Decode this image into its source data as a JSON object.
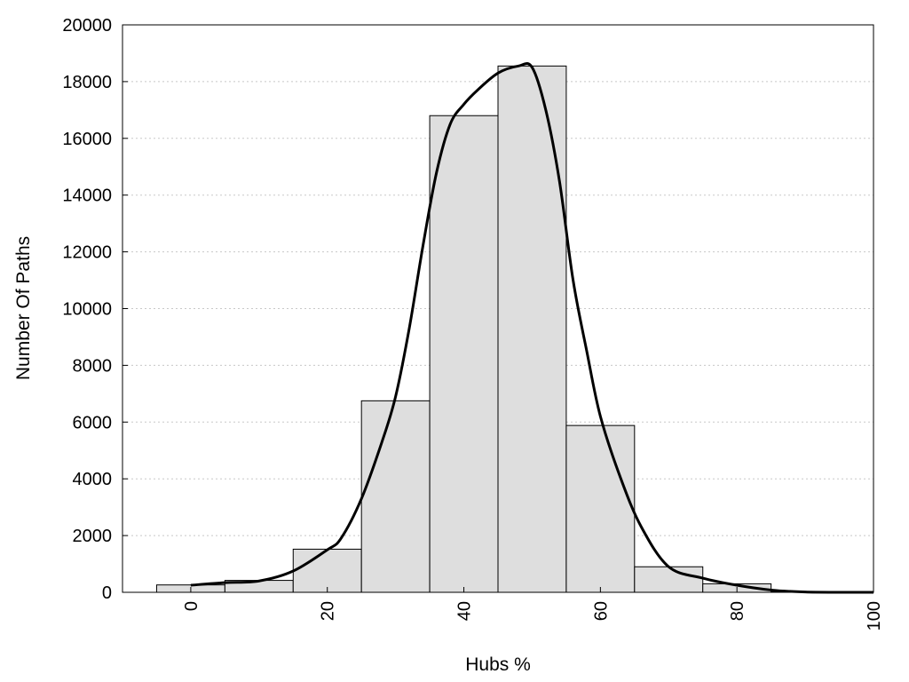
{
  "chart_data": {
    "type": "bar",
    "subtype": "histogram-with-density-curve",
    "title": "",
    "xlabel": "Hubs %",
    "ylabel": "Number Of Paths",
    "xlim": [
      -10,
      100
    ],
    "ylim": [
      0,
      20000
    ],
    "x_ticks": [
      0,
      20,
      40,
      60,
      80,
      100
    ],
    "y_ticks": [
      0,
      2000,
      4000,
      6000,
      8000,
      10000,
      12000,
      14000,
      16000,
      18000,
      20000
    ],
    "grid": "horizontal-dotted",
    "legend": "none",
    "bin_width": 10,
    "categories": [
      0,
      10,
      20,
      30,
      40,
      50,
      60,
      70,
      80,
      90
    ],
    "values": [
      260,
      420,
      1520,
      6750,
      16800,
      18550,
      5880,
      900,
      300,
      20
    ],
    "curve": {
      "x": [
        0,
        5,
        10,
        15,
        20,
        22,
        25,
        28,
        30,
        32,
        34,
        36,
        38,
        40,
        42,
        45,
        48,
        50,
        52,
        54,
        56,
        58,
        60,
        63,
        66,
        70,
        75,
        80,
        85,
        90,
        95,
        100
      ],
      "y": [
        250,
        340,
        400,
        750,
        1500,
        1900,
        3300,
        5300,
        6900,
        9300,
        12200,
        14800,
        16500,
        17200,
        17700,
        18300,
        18550,
        18500,
        17000,
        14500,
        11000,
        8500,
        6200,
        4000,
        2300,
        900,
        500,
        250,
        80,
        10,
        0,
        0
      ]
    },
    "colors": {
      "bar_fill": "#dedede",
      "bar_stroke": "#000000",
      "curve": "#000000",
      "grid": "#c8c8c8"
    }
  }
}
